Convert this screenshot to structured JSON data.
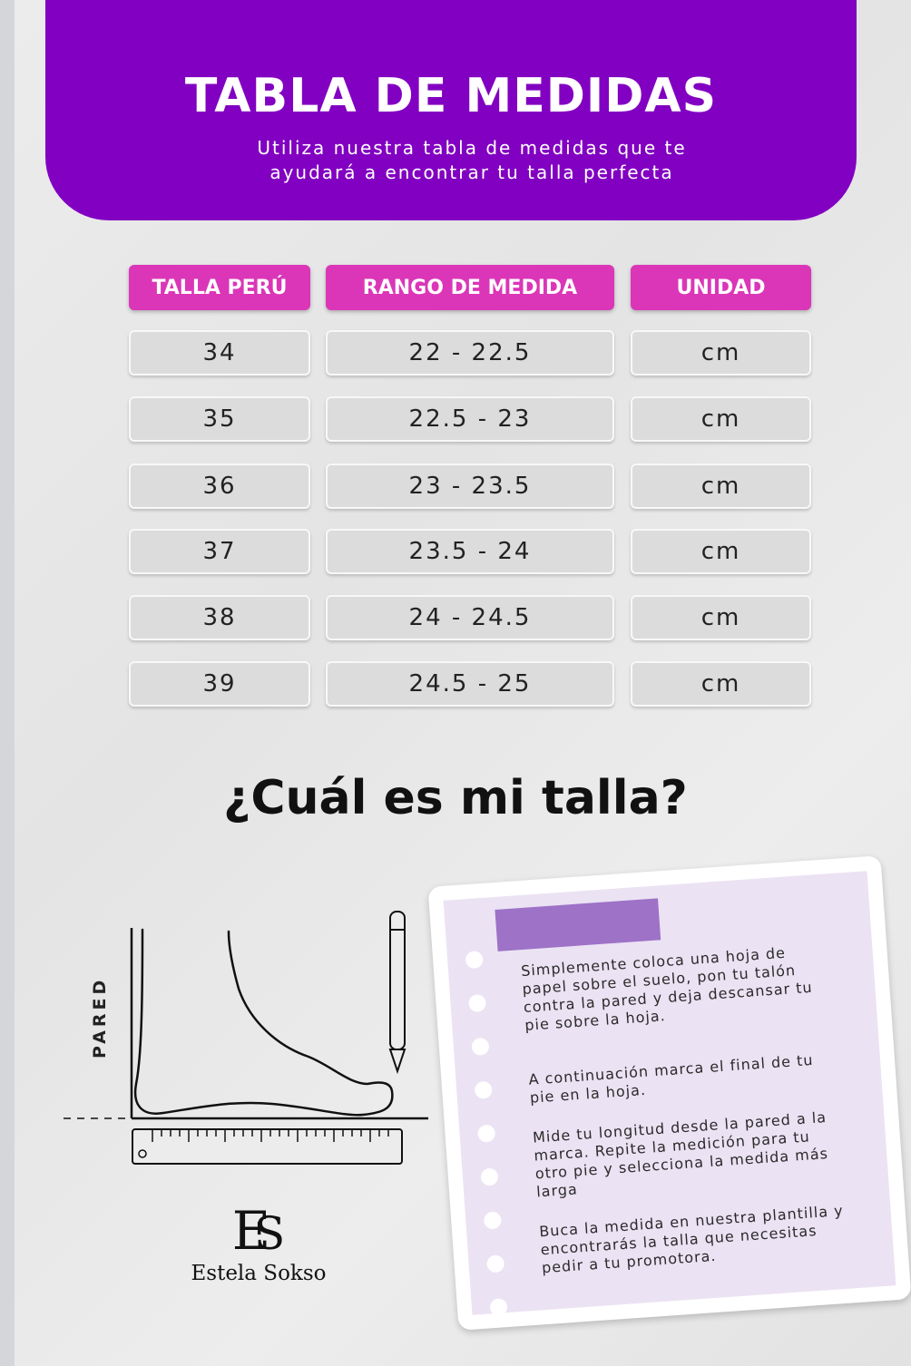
{
  "header": {
    "title": "TABLA DE MEDIDAS",
    "subtitle_line1": "Utiliza nuestra tabla de medidas que te",
    "subtitle_line2": "ayudará a encontrar tu talla perfecta"
  },
  "table": {
    "columns": [
      "TALLA PERÚ",
      "RANGO DE MEDIDA",
      "UNIDAD"
    ],
    "rows": [
      [
        "34",
        "22 - 22.5",
        "cm"
      ],
      [
        "35",
        "22.5 - 23",
        "cm"
      ],
      [
        "36",
        "23 - 23.5",
        "cm"
      ],
      [
        "37",
        "23.5 - 24",
        "cm"
      ],
      [
        "38",
        "24 - 24.5",
        "cm"
      ],
      [
        "39",
        "24.5 - 25",
        "cm"
      ]
    ]
  },
  "question": "¿Cuál es mi talla?",
  "diagram": {
    "wall_label": "PARED"
  },
  "logo": {
    "brand": "Estela Sokso"
  },
  "instructions": [
    "Simplemente coloca una hoja de papel sobre el suelo, pon tu talón contra la pared y deja descansar tu pie sobre la hoja.",
    "A continuación marca el final de tu pie en la hoja.",
    "Mide tu longitud desde la pared a la marca. Repite la medición para tu otro pie y selecciona la medida más larga",
    "Buca la medida en nuestra plantilla y encontrarás la talla que necesitas pedir a tu promotora."
  ],
  "colors": {
    "header_bg": "#8200c1",
    "table_header_bg": "#db36b8",
    "cell_bg": "#dcdcdc",
    "note_bg": "#ebe2f3",
    "tape": "#9d72c7"
  }
}
